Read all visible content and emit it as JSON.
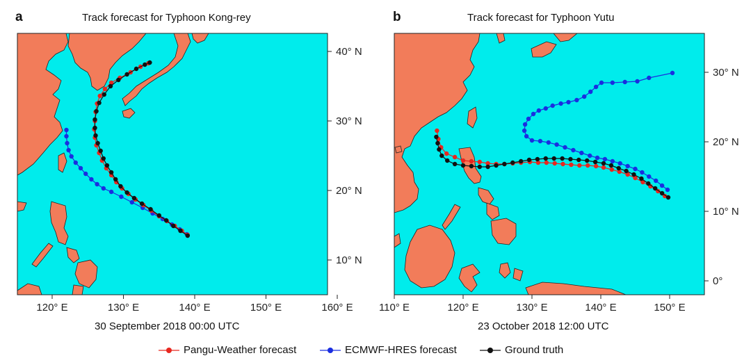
{
  "panels": [
    {
      "label": "a",
      "title": "Track forecast for Typhoon Kong-rey",
      "date": "30 September 2018 00:00 UTC",
      "x_ticks": [
        "120° E",
        "130° E",
        "140° E",
        "150° E",
        "160° E"
      ],
      "y_ticks": [
        "10° N",
        "20° N",
        "30° N",
        "40° N"
      ],
      "tracks": {
        "pangu": [
          [
            139.0,
            13.6
          ],
          [
            138.2,
            14.2
          ],
          [
            137.2,
            14.9
          ],
          [
            136.1,
            15.6
          ],
          [
            135.0,
            16.3
          ],
          [
            133.9,
            17.1
          ],
          [
            132.8,
            17.9
          ],
          [
            131.7,
            18.7
          ],
          [
            130.7,
            19.5
          ],
          [
            129.8,
            20.3
          ],
          [
            129.0,
            21.2
          ],
          [
            128.3,
            22.2
          ],
          [
            127.6,
            23.2
          ],
          [
            127.0,
            24.3
          ],
          [
            126.6,
            25.4
          ],
          [
            126.2,
            26.5
          ],
          [
            126.0,
            27.6
          ],
          [
            125.9,
            28.8
          ],
          [
            126.0,
            30.0
          ],
          [
            126.1,
            31.3
          ],
          [
            126.3,
            32.5
          ],
          [
            126.7,
            33.6
          ],
          [
            127.4,
            34.6
          ],
          [
            128.3,
            35.5
          ],
          [
            129.5,
            36.2
          ],
          [
            131.0,
            37.0
          ],
          [
            132.4,
            37.8
          ],
          [
            133.5,
            38.3
          ]
        ],
        "ecmwf": [
          [
            138.9,
            13.7
          ],
          [
            137.9,
            14.4
          ],
          [
            136.8,
            15.1
          ],
          [
            135.5,
            15.9
          ],
          [
            134.1,
            16.7
          ],
          [
            132.7,
            17.5
          ],
          [
            131.2,
            18.3
          ],
          [
            129.7,
            19.1
          ],
          [
            128.3,
            19.8
          ],
          [
            127.2,
            20.3
          ],
          [
            126.3,
            20.9
          ],
          [
            125.5,
            21.6
          ],
          [
            124.7,
            22.4
          ],
          [
            124.0,
            23.2
          ],
          [
            123.3,
            24.0
          ],
          [
            122.7,
            24.9
          ],
          [
            122.3,
            25.8
          ],
          [
            122.1,
            26.8
          ],
          [
            122.0,
            27.8
          ],
          [
            122.0,
            28.7
          ]
        ],
        "truth": [
          [
            139.0,
            13.5
          ],
          [
            138.0,
            14.2
          ],
          [
            137.0,
            14.9
          ],
          [
            136.0,
            15.7
          ],
          [
            135.0,
            16.4
          ],
          [
            133.8,
            17.3
          ],
          [
            132.6,
            18.1
          ],
          [
            131.5,
            18.9
          ],
          [
            130.5,
            19.7
          ],
          [
            129.6,
            20.6
          ],
          [
            128.9,
            21.6
          ],
          [
            128.3,
            22.6
          ],
          [
            127.7,
            23.6
          ],
          [
            127.2,
            24.6
          ],
          [
            126.8,
            25.7
          ],
          [
            126.4,
            26.8
          ],
          [
            126.1,
            27.9
          ],
          [
            126.0,
            29.0
          ],
          [
            126.0,
            30.2
          ],
          [
            126.2,
            31.4
          ],
          [
            126.6,
            32.6
          ],
          [
            127.3,
            33.8
          ],
          [
            128.2,
            35.0
          ],
          [
            129.3,
            35.9
          ],
          [
            130.5,
            36.7
          ],
          [
            131.8,
            37.5
          ],
          [
            133.0,
            38.1
          ],
          [
            133.7,
            38.4
          ]
        ]
      }
    },
    {
      "label": "b",
      "title": "Track forecast for Typhoon Yutu",
      "date": "23 October 2018 12:00 UTC",
      "x_ticks": [
        "110° E",
        "120° E",
        "130° E",
        "140° E",
        "150° E"
      ],
      "y_ticks": [
        "0°",
        "10° N",
        "20° N",
        "30° N"
      ],
      "tracks": {
        "pangu": [
          [
            149.3,
            12.2
          ],
          [
            148.3,
            12.9
          ],
          [
            147.2,
            13.6
          ],
          [
            146.1,
            14.2
          ],
          [
            145.0,
            14.8
          ],
          [
            143.9,
            15.3
          ],
          [
            142.7,
            15.7
          ],
          [
            141.6,
            16.0
          ],
          [
            140.4,
            16.3
          ],
          [
            139.3,
            16.5
          ],
          [
            138.1,
            16.6
          ],
          [
            136.9,
            16.6
          ],
          [
            135.7,
            16.7
          ],
          [
            134.5,
            16.8
          ],
          [
            133.3,
            16.9
          ],
          [
            132.1,
            17.0
          ],
          [
            130.9,
            17.0
          ],
          [
            129.7,
            17.1
          ],
          [
            128.4,
            17.0
          ],
          [
            127.2,
            16.9
          ],
          [
            126.0,
            16.8
          ],
          [
            124.8,
            16.8
          ],
          [
            123.6,
            16.9
          ],
          [
            122.4,
            17.1
          ],
          [
            121.2,
            17.2
          ],
          [
            120.0,
            17.3
          ],
          [
            118.8,
            17.8
          ],
          [
            117.6,
            18.3
          ],
          [
            116.8,
            19.2
          ],
          [
            116.4,
            20.4
          ],
          [
            116.2,
            21.6
          ]
        ],
        "ecmwf": [
          [
            149.7,
            13.1
          ],
          [
            148.9,
            13.7
          ],
          [
            148.0,
            14.4
          ],
          [
            147.0,
            15.0
          ],
          [
            146.0,
            15.6
          ],
          [
            145.0,
            16.1
          ],
          [
            143.9,
            16.5
          ],
          [
            142.8,
            16.9
          ],
          [
            141.7,
            17.2
          ],
          [
            140.6,
            17.5
          ],
          [
            139.5,
            17.7
          ],
          [
            138.4,
            18.0
          ],
          [
            137.2,
            18.4
          ],
          [
            136.0,
            18.8
          ],
          [
            134.8,
            19.2
          ],
          [
            133.6,
            19.6
          ],
          [
            132.4,
            19.9
          ],
          [
            131.2,
            20.1
          ],
          [
            130.0,
            20.2
          ],
          [
            129.2,
            20.8
          ],
          [
            128.9,
            21.6
          ],
          [
            129.0,
            22.5
          ],
          [
            129.5,
            23.3
          ],
          [
            130.2,
            24.0
          ],
          [
            131.0,
            24.5
          ],
          [
            132.0,
            24.8
          ],
          [
            133.0,
            25.2
          ],
          [
            134.2,
            25.5
          ],
          [
            135.3,
            25.7
          ],
          [
            136.5,
            26.0
          ],
          [
            137.6,
            26.5
          ],
          [
            138.5,
            27.2
          ],
          [
            139.3,
            27.9
          ],
          [
            140.1,
            28.5
          ],
          [
            141.7,
            28.5
          ],
          [
            143.5,
            28.6
          ],
          [
            145.3,
            28.7
          ],
          [
            147.0,
            29.2
          ],
          [
            150.4,
            29.9
          ]
        ],
        "truth": [
          [
            149.8,
            12.0
          ],
          [
            148.9,
            12.6
          ],
          [
            147.9,
            13.3
          ],
          [
            146.9,
            14.0
          ],
          [
            145.9,
            14.7
          ],
          [
            144.8,
            15.3
          ],
          [
            143.7,
            15.8
          ],
          [
            142.6,
            16.2
          ],
          [
            141.5,
            16.6
          ],
          [
            140.4,
            16.9
          ],
          [
            139.2,
            17.1
          ],
          [
            138.0,
            17.3
          ],
          [
            136.8,
            17.4
          ],
          [
            135.6,
            17.5
          ],
          [
            134.4,
            17.6
          ],
          [
            133.2,
            17.6
          ],
          [
            132.0,
            17.6
          ],
          [
            130.8,
            17.5
          ],
          [
            129.6,
            17.4
          ],
          [
            128.4,
            17.2
          ],
          [
            127.2,
            17.0
          ],
          [
            126.0,
            16.8
          ],
          [
            124.8,
            16.6
          ],
          [
            123.6,
            16.4
          ],
          [
            122.4,
            16.4
          ],
          [
            121.2,
            16.5
          ],
          [
            120.0,
            16.6
          ],
          [
            118.8,
            16.8
          ],
          [
            117.7,
            17.3
          ],
          [
            116.9,
            18.0
          ],
          [
            116.5,
            18.9
          ],
          [
            116.3,
            19.8
          ],
          [
            116.1,
            20.7
          ]
        ]
      }
    }
  ],
  "legend": [
    {
      "label": "Pangu-Weather forecast",
      "color": "#e8271f"
    },
    {
      "label": "ECMWF-HRES forecast",
      "color": "#1a2ee0"
    },
    {
      "label": "Ground truth",
      "color": "#111111"
    }
  ],
  "colors": {
    "ocean": "#00ecec",
    "land": "#f27c5a",
    "coast": "#222222"
  }
}
